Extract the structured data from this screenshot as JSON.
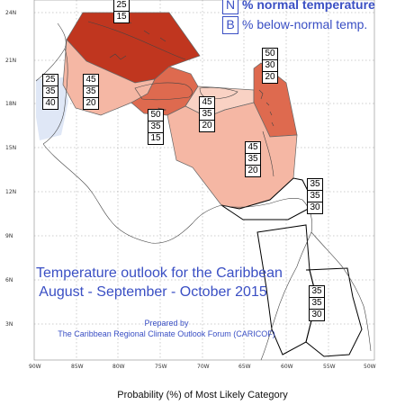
{
  "legend": {
    "rows": [
      {
        "letter": "N",
        "text": "% normal temperature"
      },
      {
        "letter": "B",
        "text": "% below-normal temp."
      }
    ]
  },
  "title": {
    "line1": "Temperature outlook for the Caribbean",
    "line2": "August - September - October 2015",
    "prepared_by": "Prepared by",
    "organization": "The Caribbean Regional Climate Outlook Forum (CARICOF)"
  },
  "footer": "Probability (%) of Most Likely Category",
  "latitude_labels": [
    "24N",
    "21N",
    "18N",
    "15N",
    "12N",
    "9N",
    "6N",
    "3N"
  ],
  "longitude_labels": [
    "90W",
    "85W",
    "80W",
    "75W",
    "70W",
    "65W",
    "60W",
    "55W",
    "50W"
  ],
  "probability_boxes": [
    {
      "values": [
        "25",
        "15"
      ]
    },
    {
      "values": [
        "25",
        "35",
        "40"
      ]
    },
    {
      "values": [
        "45",
        "35",
        "20"
      ]
    },
    {
      "values": [
        "50",
        "35",
        "15"
      ]
    },
    {
      "values": [
        "45",
        "35",
        "20"
      ]
    },
    {
      "values": [
        "50",
        "30",
        "20"
      ]
    },
    {
      "values": [
        "45",
        "35",
        "20"
      ]
    },
    {
      "values": [
        "35",
        "35",
        "30"
      ]
    },
    {
      "values": [
        "35",
        "35",
        "30"
      ]
    }
  ],
  "colors": {
    "above_strong": "#c0361f",
    "above_medium": "#de6a4f",
    "above_light": "#f5b7a4",
    "above_pale": "#f9d2c4",
    "below_pale": "#dfe7f6",
    "accent_text": "#3a4fc4"
  }
}
